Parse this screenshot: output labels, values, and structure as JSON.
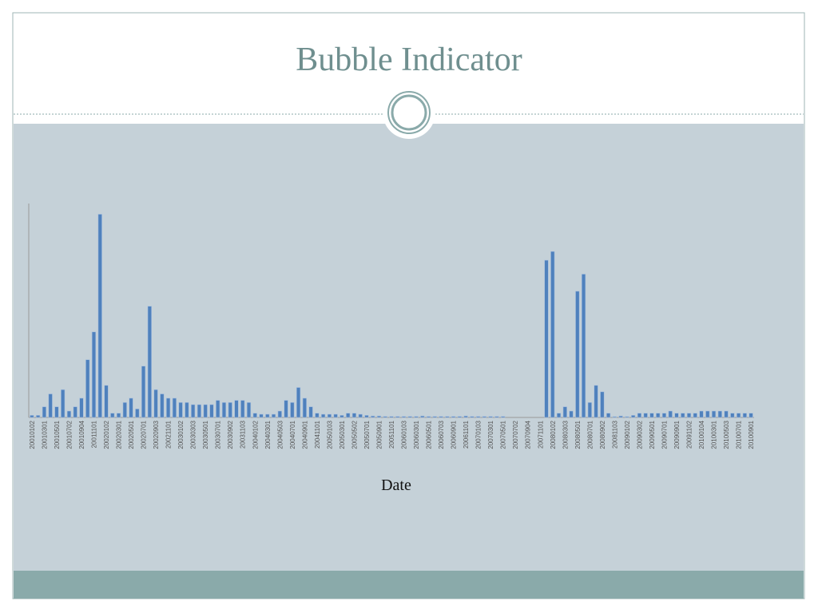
{
  "chart_data": {
    "type": "bar",
    "title": "Bubble Indicator",
    "x_label": "Date",
    "color": "#4f81bd",
    "categories": [
      "20010102",
      null,
      "20010301",
      null,
      "20010501",
      null,
      "20010702",
      null,
      "20010904",
      null,
      "20011101",
      null,
      "20020102",
      null,
      "20020301",
      null,
      "20020501",
      null,
      "20020701",
      null,
      "20020903",
      null,
      "20021101",
      null,
      "20030102",
      null,
      "20030303",
      null,
      "20030501",
      null,
      "20030701",
      null,
      "20030902",
      null,
      "20031103",
      null,
      "20040102",
      null,
      "20040301",
      null,
      "20040503",
      null,
      "20040701",
      null,
      "20040901",
      null,
      "20041101",
      null,
      "20050103",
      null,
      "20050301",
      null,
      "20050502",
      null,
      "20050701",
      null,
      "20050901",
      null,
      "20051101",
      null,
      "20060103",
      null,
      "20060301",
      null,
      "20060501",
      null,
      "20060703",
      null,
      "20060901",
      null,
      "20061101",
      null,
      "20070103",
      null,
      "20070301",
      null,
      "20070501",
      null,
      "20070702",
      null,
      "20070904",
      null,
      "20071101",
      null,
      "20080102",
      null,
      "20080303",
      null,
      "20080501",
      null,
      "20080701",
      null,
      "20080902",
      null,
      "20081103",
      null,
      "20090102",
      null,
      "20090302",
      null,
      "20090501",
      null,
      "20090701",
      null,
      "20090901",
      null,
      "20091102",
      null,
      "20100104",
      null,
      "20100301",
      null,
      "20100503",
      null,
      "20100701",
      null,
      "20100901"
    ],
    "values": [
      1,
      1,
      5,
      11,
      5,
      13,
      3,
      5,
      9,
      27,
      40,
      95,
      15,
      2,
      2,
      7,
      9,
      4,
      24,
      52,
      13,
      11,
      9,
      9,
      7,
      7,
      6,
      6,
      6,
      6,
      8,
      7,
      7,
      8,
      8,
      7,
      2,
      1.5,
      1.5,
      1.5,
      3,
      8,
      7,
      14,
      9,
      5,
      2,
      1.5,
      1.5,
      1.5,
      1,
      2,
      2,
      1.5,
      1,
      0.7,
      0.7,
      0.5,
      0.5,
      0.5,
      0.5,
      0.5,
      0.5,
      0.7,
      0.5,
      0.5,
      0.5,
      0.5,
      0.5,
      0.5,
      0.7,
      0.5,
      0.5,
      0.5,
      0.5,
      0.5,
      0.5,
      0,
      0,
      0,
      0,
      0,
      0,
      73.5,
      77.6,
      2,
      5,
      3,
      59,
      67,
      7,
      15,
      12,
      2,
      0.4,
      0.7,
      0.4,
      1,
      2,
      2,
      2,
      2,
      2,
      3,
      2,
      2,
      2,
      2,
      3,
      3,
      3,
      3,
      3,
      2,
      2,
      2,
      2
    ],
    "ylim": [
      0,
      100
    ]
  }
}
